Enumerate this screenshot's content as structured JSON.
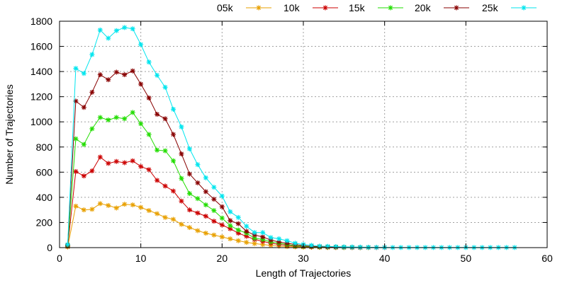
{
  "chart_data": {
    "type": "line",
    "title": "",
    "xlabel": "Length of Trajectories",
    "ylabel": "Number of Trajectories",
    "xlim": [
      0,
      60
    ],
    "ylim": [
      0,
      1800
    ],
    "xticks": [
      0,
      10,
      20,
      30,
      40,
      50,
      60
    ],
    "yticks": [
      0,
      200,
      400,
      600,
      800,
      1000,
      1200,
      1400,
      1600,
      1800
    ],
    "grid": true,
    "legend_position": "top-right",
    "x": [
      1,
      2,
      3,
      4,
      5,
      6,
      7,
      8,
      9,
      10,
      11,
      12,
      13,
      14,
      15,
      16,
      17,
      18,
      19,
      20,
      21,
      22,
      23,
      24,
      25,
      26,
      27,
      28,
      29,
      30,
      31,
      32,
      33,
      34,
      35,
      36,
      37,
      38,
      39,
      40,
      41,
      42,
      43,
      44,
      45,
      46,
      47,
      48,
      49,
      50,
      51,
      52,
      53,
      54,
      55,
      56
    ],
    "series": [
      {
        "name": "05k",
        "color": "#e8a000",
        "values": [
          5,
          330,
          300,
          305,
          350,
          335,
          315,
          345,
          340,
          320,
          295,
          270,
          240,
          225,
          185,
          160,
          135,
          115,
          100,
          85,
          70,
          55,
          42,
          32,
          25,
          18,
          12,
          8,
          6,
          4,
          3,
          2,
          1,
          1,
          1,
          null,
          null,
          null,
          null,
          null,
          null,
          null,
          null,
          null,
          null,
          null,
          null,
          null,
          null,
          null,
          null,
          null,
          null,
          null,
          null,
          null
        ]
      },
      {
        "name": "10k",
        "color": "#cc0000",
        "values": [
          10,
          605,
          570,
          610,
          720,
          670,
          685,
          675,
          690,
          645,
          620,
          535,
          490,
          450,
          370,
          300,
          275,
          250,
          210,
          180,
          150,
          115,
          90,
          65,
          50,
          35,
          25,
          18,
          12,
          8,
          6,
          4,
          3,
          2,
          2,
          1,
          1,
          null,
          null,
          null,
          null,
          null,
          null,
          null,
          null,
          null,
          null,
          null,
          null,
          null,
          null,
          null,
          null,
          null,
          null,
          null
        ]
      },
      {
        "name": "15k",
        "color": "#22dd00",
        "values": [
          15,
          865,
          820,
          945,
          1035,
          1015,
          1035,
          1025,
          1075,
          985,
          900,
          775,
          770,
          690,
          550,
          430,
          390,
          340,
          295,
          235,
          175,
          140,
          115,
          75,
          65,
          45,
          35,
          25,
          15,
          10,
          8,
          5,
          4,
          3,
          2,
          2,
          1,
          1,
          null,
          null,
          null,
          null,
          null,
          null,
          null,
          null,
          null,
          null,
          null,
          null,
          null,
          null,
          null,
          null,
          null,
          null
        ]
      },
      {
        "name": "20k",
        "color": "#880000",
        "values": [
          20,
          1165,
          1115,
          1235,
          1375,
          1335,
          1395,
          1375,
          1405,
          1300,
          1190,
          1060,
          1025,
          900,
          745,
          585,
          515,
          445,
          385,
          325,
          215,
          190,
          130,
          100,
          85,
          60,
          45,
          35,
          25,
          15,
          10,
          8,
          6,
          5,
          4,
          3,
          2,
          2,
          1,
          1,
          null,
          null,
          null,
          null,
          null,
          null,
          null,
          null,
          null,
          null,
          null,
          null,
          null,
          null,
          null,
          null
        ]
      },
      {
        "name": "25k",
        "color": "#00e5ee",
        "values": [
          25,
          1425,
          1385,
          1535,
          1730,
          1665,
          1725,
          1750,
          1740,
          1615,
          1475,
          1370,
          1275,
          1100,
          960,
          785,
          660,
          555,
          480,
          410,
          285,
          240,
          170,
          120,
          120,
          80,
          70,
          55,
          35,
          25,
          18,
          12,
          10,
          8,
          6,
          5,
          4,
          3,
          2,
          2,
          1,
          1,
          1,
          1,
          1,
          1,
          1,
          1,
          1,
          1,
          1,
          1,
          1,
          1,
          1,
          1
        ]
      }
    ]
  }
}
